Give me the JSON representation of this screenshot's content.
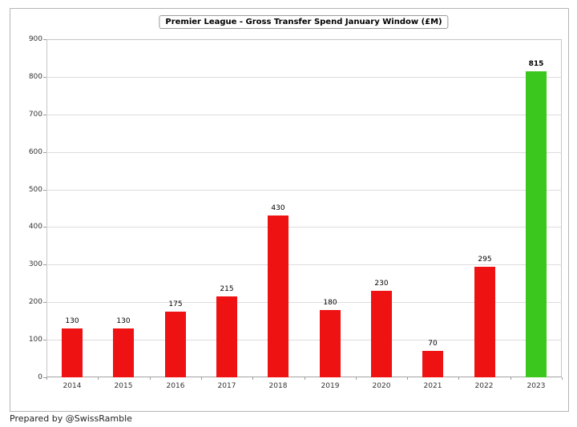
{
  "chart_data": {
    "type": "bar",
    "title": "Premier League - Gross Transfer Spend January Window (£M)",
    "categories": [
      "2014",
      "2015",
      "2016",
      "2017",
      "2018",
      "2019",
      "2020",
      "2021",
      "2022",
      "2023"
    ],
    "values": [
      130,
      130,
      175,
      215,
      430,
      180,
      230,
      70,
      295,
      815
    ],
    "bar_colors": [
      "#ee1212",
      "#ee1212",
      "#ee1212",
      "#ee1212",
      "#ee1212",
      "#ee1212",
      "#ee1212",
      "#ee1212",
      "#ee1212",
      "#3cc71e"
    ],
    "highlight_index": 9,
    "bold_value_label_index": 9,
    "xlabel": "",
    "ylabel": "",
    "ylim": [
      0,
      900
    ],
    "yticks": [
      0,
      100,
      200,
      300,
      400,
      500,
      600,
      700,
      800,
      900
    ],
    "grid": "horizontal",
    "legend": "none"
  },
  "footer": {
    "credit": "Prepared by @SwissRamble"
  },
  "colors": {
    "bar_red": "#ee1212",
    "bar_green": "#3cc71e",
    "gridline": "#dcdcdc",
    "frame_border": "#b5b5b5",
    "plot_border": "#c6c6c6",
    "tick": "#9a9a9a"
  }
}
